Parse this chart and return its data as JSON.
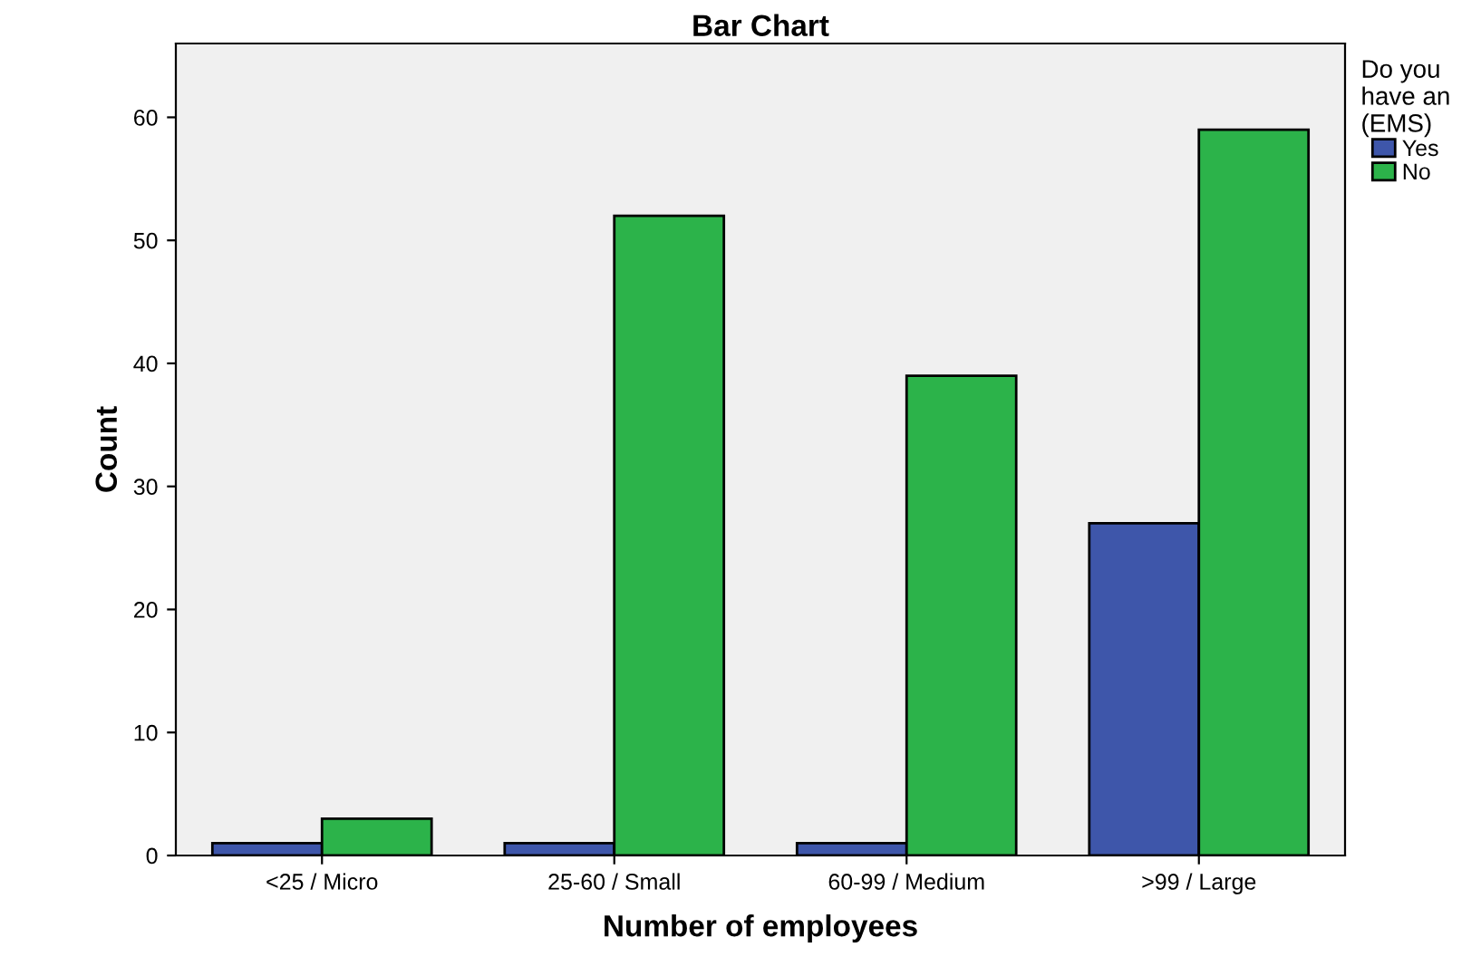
{
  "chart_data": {
    "type": "bar",
    "title": "Bar Chart",
    "xlabel": "Number of employees",
    "ylabel": "Count",
    "legend_title": "Do you have an (EMS)",
    "categories": [
      "<25 / Micro",
      "25-60 / Small",
      "60-99 / Medium",
      ">99 / Large"
    ],
    "series": [
      {
        "name": "Yes",
        "color": "#3e56aa",
        "values": [
          1,
          1,
          1,
          27
        ]
      },
      {
        "name": "No",
        "color": "#2cb34a",
        "values": [
          3,
          52,
          39,
          59
        ]
      }
    ],
    "ylim": [
      0,
      66
    ],
    "yticks": [
      0,
      10,
      20,
      30,
      40,
      50,
      60
    ],
    "grid": false,
    "legend": "right"
  }
}
